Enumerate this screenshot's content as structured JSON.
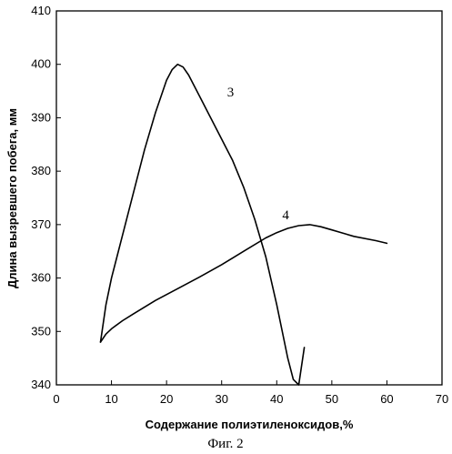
{
  "chart_data": {
    "type": "line",
    "xlabel": "Содержание полиэтиленоксидов,%",
    "ylabel": "Длина вызревшего побега, мм",
    "xlim": [
      0,
      70
    ],
    "ylim": [
      340,
      410
    ],
    "xticks": [
      0,
      10,
      20,
      30,
      40,
      50,
      60,
      70
    ],
    "yticks": [
      340,
      350,
      360,
      370,
      380,
      390,
      400,
      410
    ],
    "grid": false,
    "legend": "none",
    "series": [
      {
        "name": "3",
        "x": [
          8,
          9,
          10,
          12,
          14,
          16,
          18,
          20,
          21,
          22,
          23,
          24,
          26,
          28,
          30,
          32,
          34,
          36,
          38,
          40,
          42,
          43,
          44,
          45
        ],
        "y": [
          348,
          355,
          360,
          368,
          376,
          384,
          391,
          397,
          399,
          400,
          399.5,
          398,
          394,
          390,
          386,
          382,
          377,
          371,
          364,
          355,
          345,
          341,
          340,
          347
        ]
      },
      {
        "name": "4",
        "x": [
          8,
          9,
          10,
          12,
          14,
          18,
          22,
          26,
          30,
          34,
          38,
          40,
          42,
          44,
          46,
          48,
          50,
          54,
          58,
          60
        ],
        "y": [
          348,
          349.5,
          350.5,
          352,
          353.3,
          355.8,
          358,
          360.2,
          362.5,
          365,
          367.5,
          368.5,
          369.3,
          369.8,
          370,
          369.6,
          369,
          367.8,
          367,
          366.5
        ]
      }
    ],
    "curve_labels": [
      {
        "text": "3",
        "series": 0
      },
      {
        "text": "4",
        "series": 1
      }
    ]
  },
  "caption": "Фиг. 2"
}
